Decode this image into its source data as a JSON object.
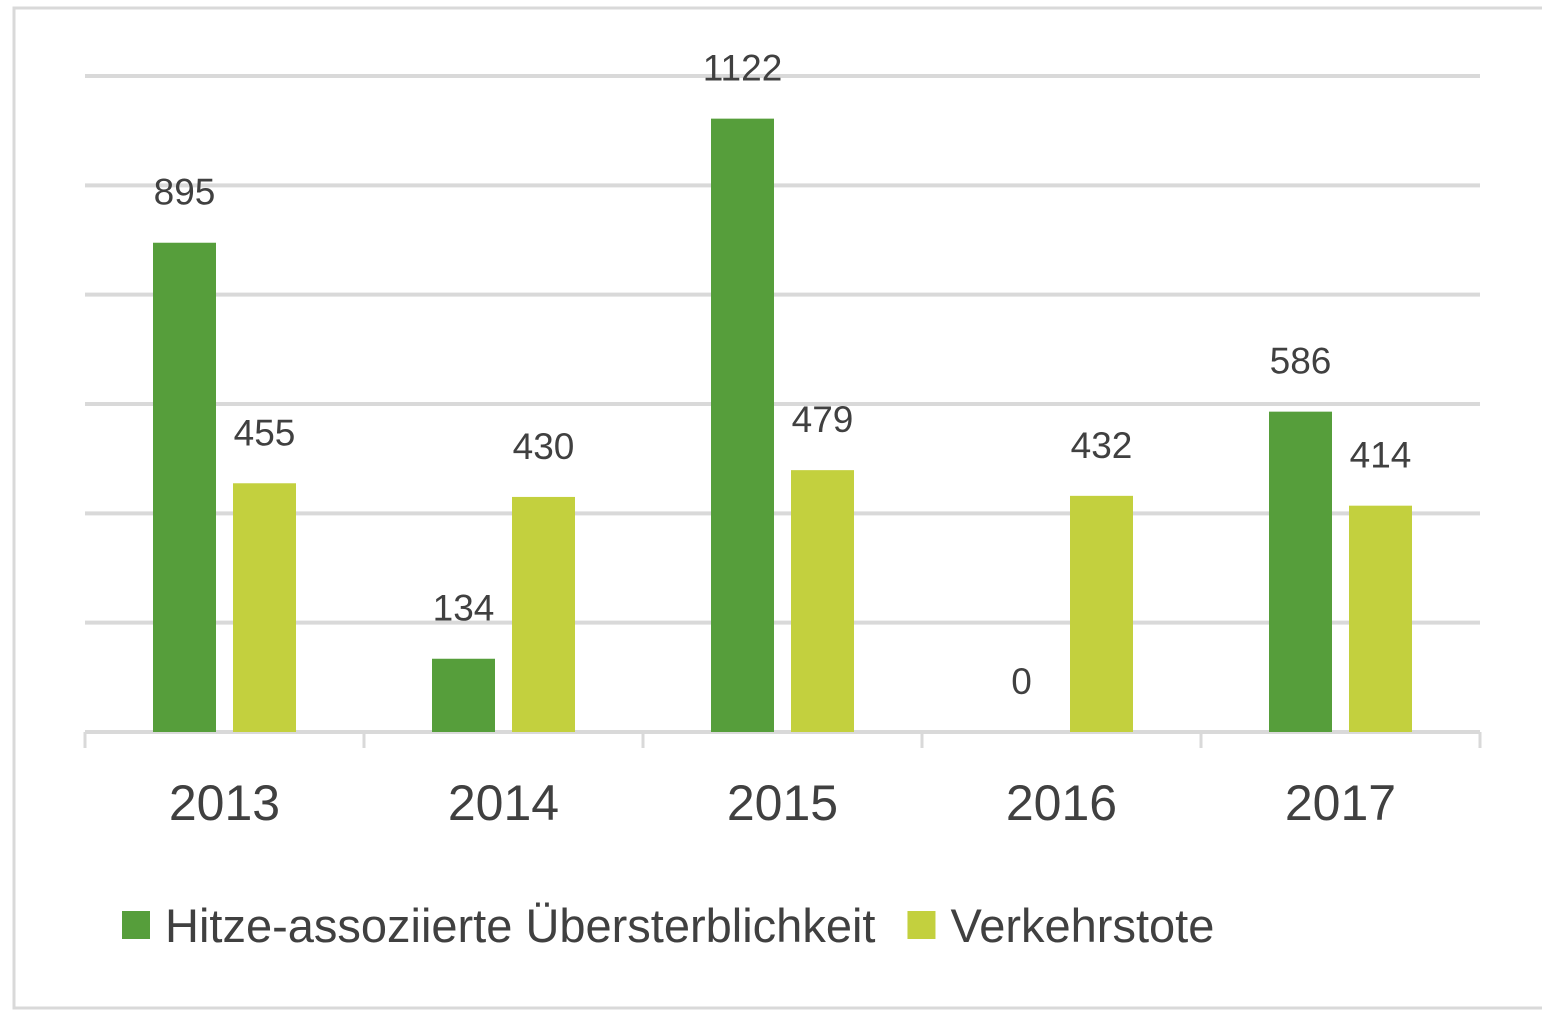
{
  "chart_data": {
    "type": "bar",
    "categories": [
      "2013",
      "2014",
      "2015",
      "2016",
      "2017"
    ],
    "series": [
      {
        "name": "Hitze-assoziierte Übersterblichkeit",
        "color": "#569e3b",
        "values": [
          895,
          134,
          1122,
          0,
          586
        ]
      },
      {
        "name": "Verkehrstote",
        "color": "#c3d03e",
        "values": [
          455,
          430,
          479,
          432,
          414
        ]
      }
    ],
    "ylim": [
      0,
      1200
    ],
    "yticks": [
      0,
      200,
      400,
      600,
      800,
      1000,
      1200
    ],
    "grid": true
  }
}
